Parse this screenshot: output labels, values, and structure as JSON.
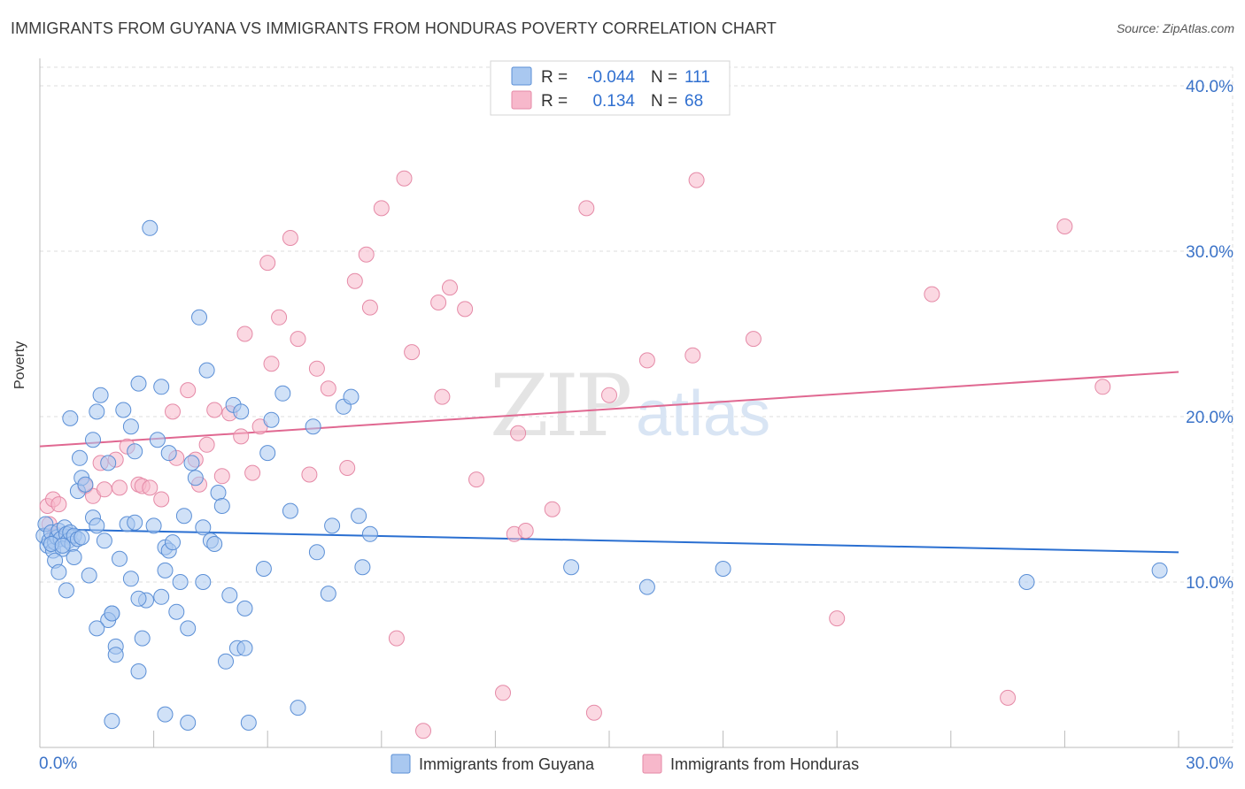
{
  "title": "IMMIGRANTS FROM GUYANA VS IMMIGRANTS FROM HONDURAS POVERTY CORRELATION CHART",
  "source": "Source: ZipAtlas.com",
  "watermark": {
    "zip": "ZIP",
    "atlas": "atlas"
  },
  "legend_top": [
    {
      "r_label": "R =",
      "r_value": "-0.044",
      "n_label": "N =",
      "n_value": "111"
    },
    {
      "r_label": "R =",
      "r_value": "0.134",
      "n_label": "N =",
      "n_value": "68"
    }
  ],
  "colors": {
    "blue_fill": "#a9c8f0",
    "blue_stroke": "#5b8fd6",
    "blue_line": "#2a6fd1",
    "pink_fill": "#f7b8cb",
    "pink_stroke": "#e58aa7",
    "pink_line": "#e06891",
    "tick_label": "#3b73c8",
    "grid": "#dddddd"
  },
  "chart_data": {
    "type": "scatter",
    "title": "IMMIGRANTS FROM GUYANA VS IMMIGRANTS FROM HONDURAS POVERTY CORRELATION CHART",
    "xlabel": "",
    "ylabel": "Poverty",
    "xlim": [
      0,
      30
    ],
    "ylim": [
      0,
      40
    ],
    "x_tick_labels": [
      "0.0%",
      "30.0%"
    ],
    "y_tick_labels": [
      "10.0%",
      "20.0%",
      "30.0%",
      "40.0%"
    ],
    "y_ticks": [
      10,
      20,
      30,
      40
    ],
    "grid": true,
    "legend_position": "bottom-center",
    "series": [
      {
        "name": "Immigrants from Guyana",
        "color": "blue",
        "r": -0.044,
        "n": 111,
        "trend": [
          [
            0,
            13.2
          ],
          [
            30,
            11.8
          ]
        ],
        "points": [
          [
            0.1,
            12.8
          ],
          [
            0.15,
            13.5
          ],
          [
            0.2,
            12.2
          ],
          [
            0.25,
            12.5
          ],
          [
            0.3,
            13.0
          ],
          [
            0.35,
            11.9
          ],
          [
            0.4,
            12.4
          ],
          [
            0.45,
            12.7
          ],
          [
            0.5,
            13.1
          ],
          [
            0.55,
            12.6
          ],
          [
            0.6,
            12.0
          ],
          [
            0.65,
            13.3
          ],
          [
            0.7,
            12.9
          ],
          [
            0.75,
            12.5
          ],
          [
            0.8,
            13.0
          ],
          [
            0.85,
            12.3
          ],
          [
            0.9,
            12.8
          ],
          [
            1.0,
            12.6
          ],
          [
            1.1,
            12.7
          ],
          [
            0.3,
            12.3
          ],
          [
            0.4,
            11.3
          ],
          [
            0.5,
            10.6
          ],
          [
            0.6,
            12.2
          ],
          [
            0.7,
            9.5
          ],
          [
            0.9,
            11.5
          ],
          [
            1.0,
            15.5
          ],
          [
            1.1,
            16.3
          ],
          [
            1.2,
            15.9
          ],
          [
            1.05,
            17.5
          ],
          [
            1.3,
            10.4
          ],
          [
            1.4,
            13.9
          ],
          [
            1.5,
            13.4
          ],
          [
            1.6,
            21.3
          ],
          [
            1.7,
            12.5
          ],
          [
            1.8,
            17.2
          ],
          [
            1.9,
            8.1
          ],
          [
            2.0,
            6.1
          ],
          [
            2.1,
            11.4
          ],
          [
            2.2,
            20.4
          ],
          [
            2.3,
            13.5
          ],
          [
            2.4,
            19.4
          ],
          [
            2.5,
            13.6
          ],
          [
            2.6,
            22.0
          ],
          [
            2.7,
            6.6
          ],
          [
            2.8,
            8.9
          ],
          [
            2.9,
            31.4
          ],
          [
            3.0,
            13.4
          ],
          [
            3.1,
            18.6
          ],
          [
            3.2,
            21.8
          ],
          [
            3.3,
            12.1
          ],
          [
            3.4,
            11.9
          ],
          [
            3.5,
            12.4
          ],
          [
            3.6,
            8.2
          ],
          [
            3.7,
            10.0
          ],
          [
            3.8,
            14.0
          ],
          [
            3.9,
            7.2
          ],
          [
            4.0,
            17.2
          ],
          [
            4.1,
            16.3
          ],
          [
            4.2,
            26.0
          ],
          [
            4.3,
            13.3
          ],
          [
            4.4,
            22.8
          ],
          [
            4.5,
            12.5
          ],
          [
            4.6,
            12.3
          ],
          [
            4.7,
            15.4
          ],
          [
            4.8,
            14.6
          ],
          [
            4.9,
            5.2
          ],
          [
            5.0,
            9.2
          ],
          [
            5.1,
            20.7
          ],
          [
            5.2,
            6.0
          ],
          [
            5.3,
            20.3
          ],
          [
            5.4,
            8.4
          ],
          [
            5.5,
            1.5
          ],
          [
            5.9,
            10.8
          ],
          [
            6.0,
            17.8
          ],
          [
            6.4,
            21.4
          ],
          [
            6.6,
            14.3
          ],
          [
            6.8,
            2.4
          ],
          [
            7.2,
            19.4
          ],
          [
            7.3,
            11.8
          ],
          [
            7.6,
            9.3
          ],
          [
            7.7,
            13.4
          ],
          [
            8.0,
            20.6
          ],
          [
            8.2,
            21.2
          ],
          [
            8.4,
            14.0
          ],
          [
            8.5,
            10.9
          ],
          [
            8.7,
            12.9
          ],
          [
            1.5,
            20.3
          ],
          [
            0.8,
            19.9
          ],
          [
            1.4,
            18.6
          ],
          [
            2.5,
            17.9
          ],
          [
            3.4,
            17.8
          ],
          [
            1.8,
            7.7
          ],
          [
            2.6,
            4.6
          ],
          [
            3.2,
            9.1
          ],
          [
            2.4,
            10.2
          ],
          [
            1.9,
            8.1
          ],
          [
            2.0,
            5.6
          ],
          [
            3.9,
            1.5
          ],
          [
            1.9,
            1.6
          ],
          [
            4.3,
            10.0
          ],
          [
            1.5,
            7.2
          ],
          [
            6.1,
            19.8
          ],
          [
            3.3,
            10.7
          ],
          [
            14.0,
            10.9
          ],
          [
            16.0,
            9.7
          ],
          [
            18.0,
            10.8
          ],
          [
            26.0,
            10.0
          ],
          [
            29.5,
            10.7
          ],
          [
            3.3,
            2.0
          ],
          [
            5.4,
            6.0
          ],
          [
            2.6,
            9.0
          ]
        ]
      },
      {
        "name": "Immigrants from Honduras",
        "color": "pink",
        "r": 0.134,
        "n": 68,
        "trend": [
          [
            0,
            18.2
          ],
          [
            30,
            22.7
          ]
        ],
        "points": [
          [
            0.2,
            14.6
          ],
          [
            0.35,
            15.0
          ],
          [
            0.5,
            14.7
          ],
          [
            1.2,
            15.8
          ],
          [
            1.4,
            15.2
          ],
          [
            1.6,
            17.2
          ],
          [
            1.7,
            15.6
          ],
          [
            2.0,
            17.4
          ],
          [
            2.1,
            15.7
          ],
          [
            2.3,
            18.2
          ],
          [
            2.6,
            15.9
          ],
          [
            2.7,
            15.8
          ],
          [
            2.9,
            15.7
          ],
          [
            3.2,
            15.0
          ],
          [
            3.5,
            20.3
          ],
          [
            3.6,
            17.5
          ],
          [
            3.9,
            21.6
          ],
          [
            4.1,
            17.4
          ],
          [
            4.2,
            15.9
          ],
          [
            4.4,
            18.3
          ],
          [
            4.6,
            20.4
          ],
          [
            4.8,
            16.4
          ],
          [
            5.0,
            20.2
          ],
          [
            5.3,
            18.8
          ],
          [
            5.4,
            25.0
          ],
          [
            5.6,
            16.6
          ],
          [
            5.8,
            19.4
          ],
          [
            6.0,
            29.3
          ],
          [
            6.1,
            23.2
          ],
          [
            6.3,
            26.0
          ],
          [
            6.6,
            30.8
          ],
          [
            6.8,
            24.7
          ],
          [
            7.1,
            16.5
          ],
          [
            7.3,
            22.9
          ],
          [
            7.6,
            21.7
          ],
          [
            8.1,
            16.9
          ],
          [
            8.3,
            28.2
          ],
          [
            8.6,
            29.8
          ],
          [
            8.7,
            26.6
          ],
          [
            9.0,
            32.6
          ],
          [
            9.4,
            6.6
          ],
          [
            9.6,
            34.4
          ],
          [
            9.8,
            23.9
          ],
          [
            10.1,
            1.0
          ],
          [
            10.5,
            26.9
          ],
          [
            10.6,
            21.2
          ],
          [
            10.8,
            27.8
          ],
          [
            11.2,
            26.5
          ],
          [
            11.5,
            16.2
          ],
          [
            12.2,
            3.3
          ],
          [
            12.5,
            12.9
          ],
          [
            12.6,
            19.0
          ],
          [
            12.8,
            13.1
          ],
          [
            13.5,
            14.4
          ],
          [
            14.4,
            32.6
          ],
          [
            14.6,
            2.1
          ],
          [
            15.0,
            21.3
          ],
          [
            16.0,
            23.4
          ],
          [
            17.2,
            23.7
          ],
          [
            17.3,
            34.3
          ],
          [
            18.8,
            24.7
          ],
          [
            21.0,
            7.8
          ],
          [
            23.5,
            27.4
          ],
          [
            25.5,
            3.0
          ],
          [
            27.0,
            31.5
          ],
          [
            28.0,
            21.8
          ],
          [
            0.25,
            13.5
          ],
          [
            0.4,
            12.9
          ]
        ]
      }
    ]
  },
  "legend_bottom": [
    {
      "label": "Immigrants from Guyana"
    },
    {
      "label": "Immigrants from Honduras"
    }
  ]
}
